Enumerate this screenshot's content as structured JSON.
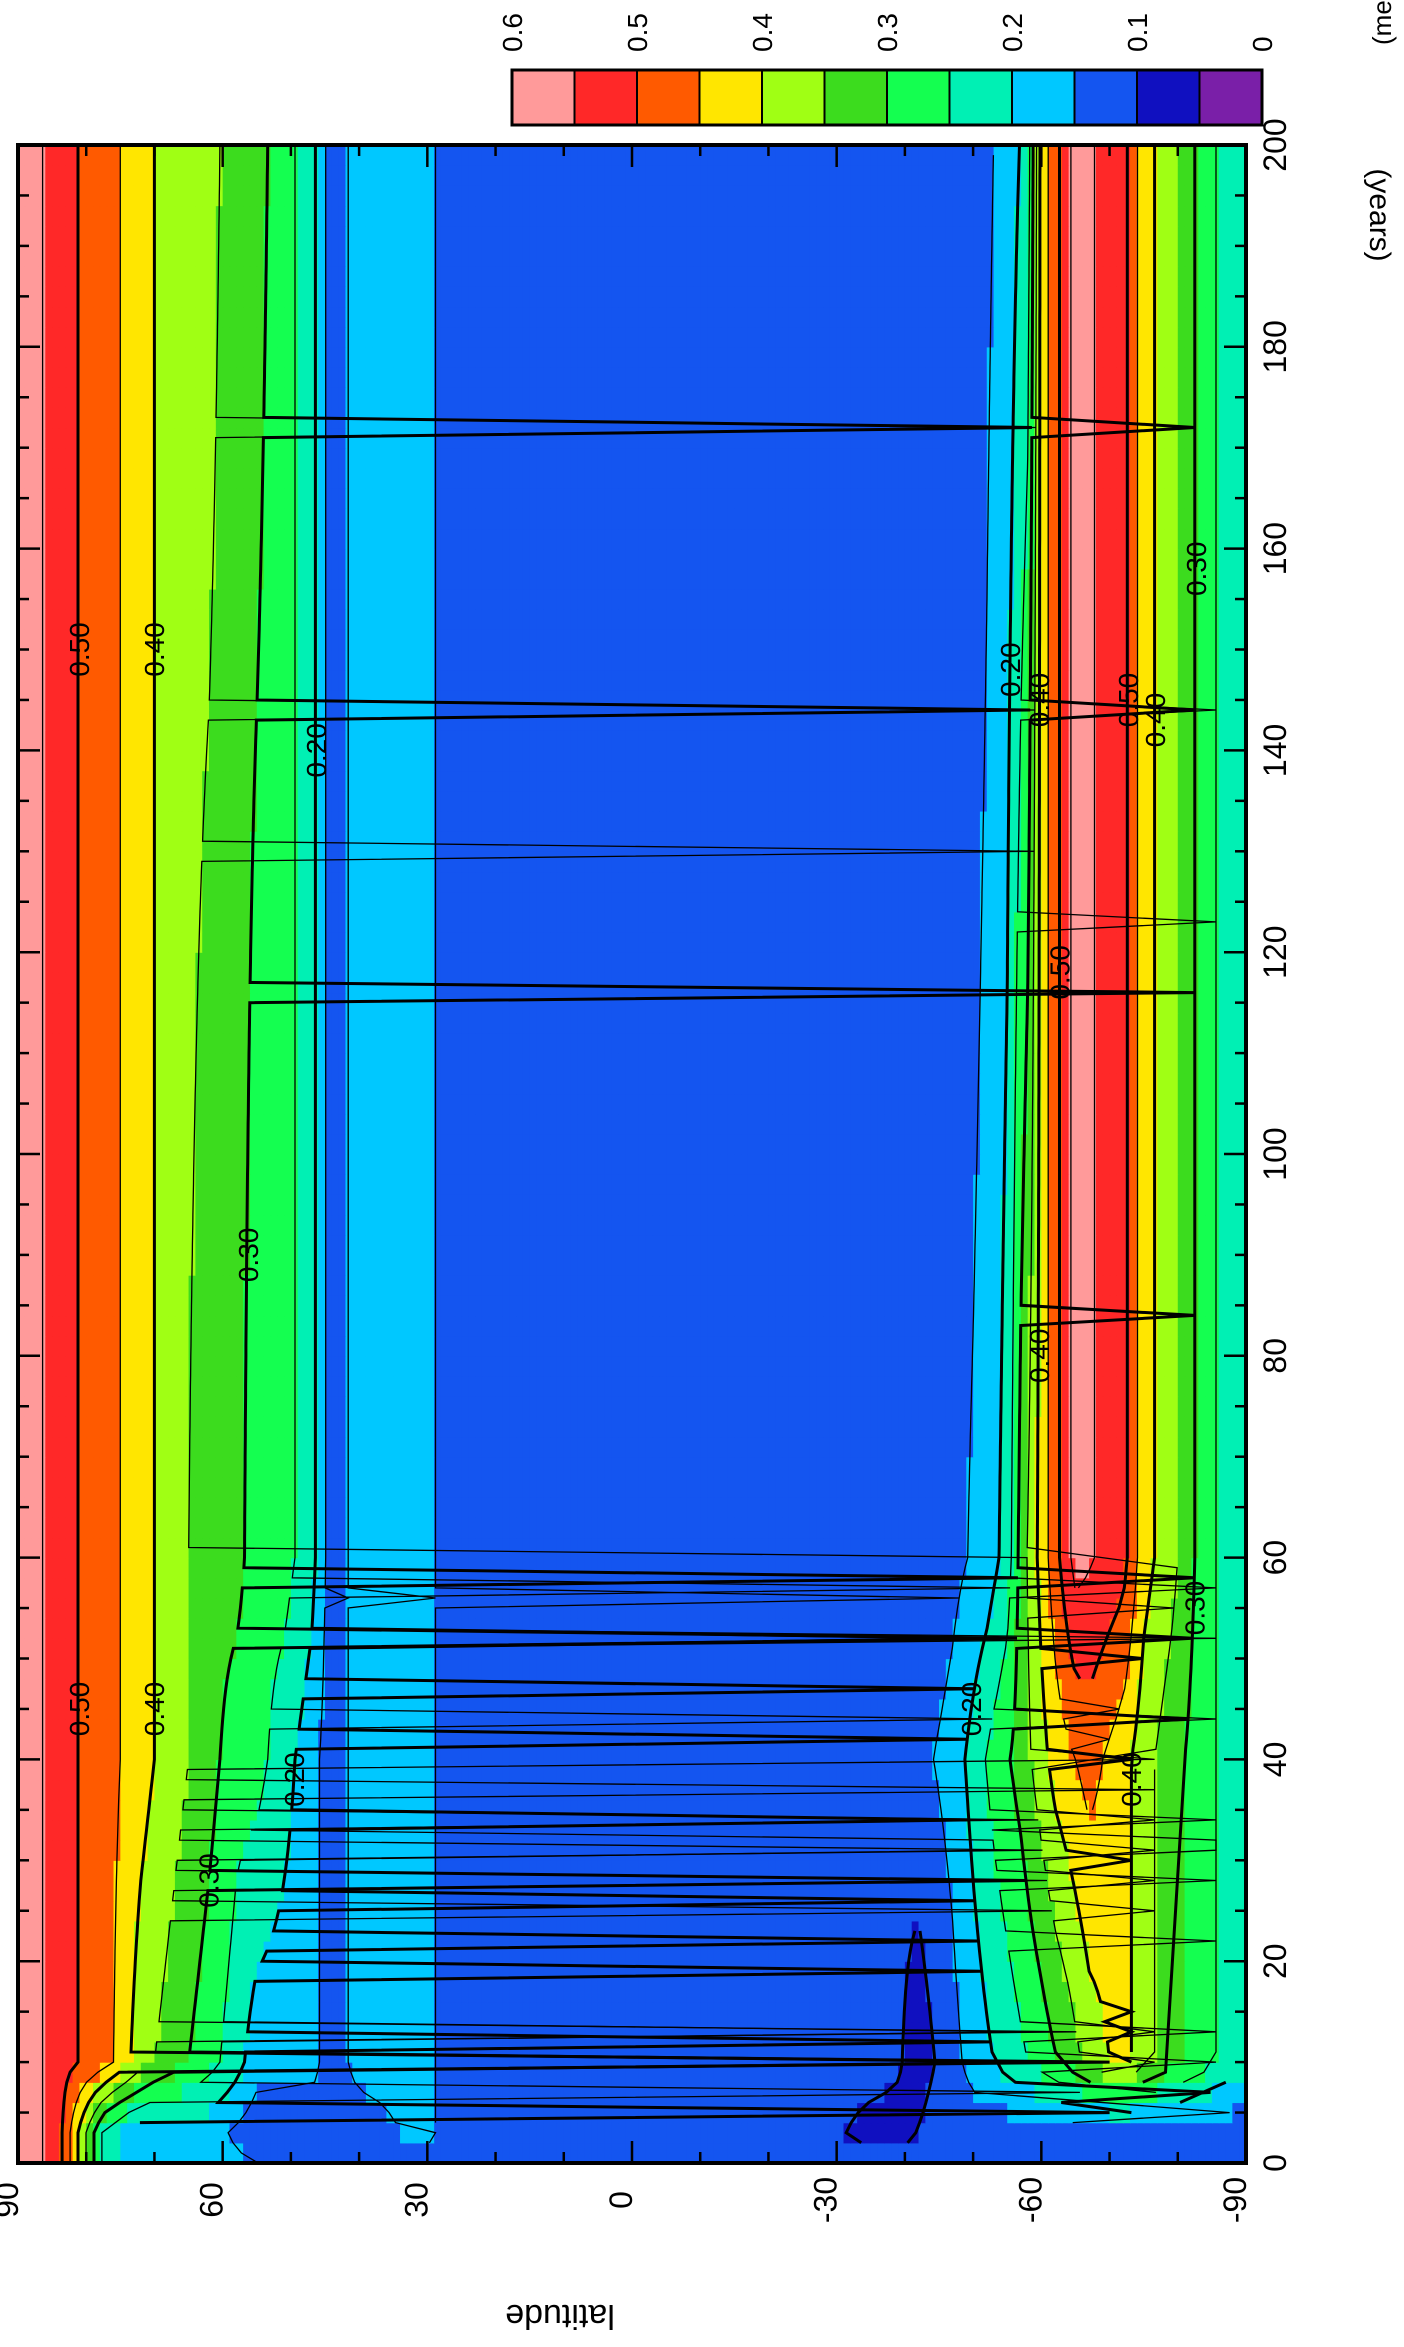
{
  "chart_data": {
    "type": "heatmap",
    "title": "",
    "xlabel": "(years)",
    "ylabel": "latitude",
    "x_range": [
      0,
      200
    ],
    "y_range": [
      -90,
      90
    ],
    "x_ticks": [
      "0",
      "20",
      "40",
      "60",
      "80",
      "100",
      "120",
      "140",
      "160",
      "180",
      "200"
    ],
    "y_ticks": [
      "90",
      "60",
      "30",
      "0",
      "-30",
      "-60",
      "-90"
    ],
    "grid": false,
    "colorbar": {
      "label": "(mean)",
      "placement": "top-right",
      "bins": [
        {
          "from": 0.0,
          "color": "#7a1fa8"
        },
        {
          "from": 0.05,
          "color": "#1010c0"
        },
        {
          "from": 0.1,
          "color": "#1455f0"
        },
        {
          "from": 0.15,
          "color": "#00c8ff"
        },
        {
          "from": 0.2,
          "color": "#00f0b4"
        },
        {
          "from": 0.25,
          "color": "#14ff50"
        },
        {
          "from": 0.3,
          "color": "#3cdc1e"
        },
        {
          "from": 0.35,
          "color": "#a0ff14"
        },
        {
          "from": 0.4,
          "color": "#ffe600"
        },
        {
          "from": 0.45,
          "color": "#ff5a00"
        },
        {
          "from": 0.5,
          "color": "#ff2828"
        },
        {
          "from": 0.55,
          "color": "#ff9a9a"
        }
      ],
      "tick_labels": [
        "0",
        "0.1",
        "0.2",
        "0.3",
        "0.4",
        "0.5",
        "0.6"
      ]
    },
    "contour_labels": [
      "0.50",
      "0.40",
      "0.30",
      "0.20"
    ],
    "profiles": [
      {
        "x": 200,
        "lat": [
          88,
          84,
          77,
          72,
          67,
          62,
          58,
          55,
          51,
          47,
          44,
          40,
          30,
          27,
          0,
          -27,
          -50,
          -55,
          -58,
          -60,
          -65,
          -72,
          -75,
          -79,
          -84,
          -88
        ],
        "val": [
          0.57,
          0.52,
          0.47,
          0.42,
          0.37,
          0.37,
          0.32,
          0.32,
          0.27,
          0.22,
          0.12,
          0.17,
          0.17,
          0.12,
          0.12,
          0.12,
          0.12,
          0.17,
          0.22,
          0.42,
          0.57,
          0.52,
          0.42,
          0.37,
          0.27,
          0.22
        ]
      },
      {
        "x": 60,
        "lat": [
          88,
          84,
          77,
          72,
          67,
          62,
          58,
          55,
          51,
          47,
          44,
          40,
          30,
          27,
          0,
          -27,
          -45,
          -52,
          -55,
          -57,
          -60,
          -65,
          -72,
          -75,
          -79,
          -84,
          -88
        ],
        "val": [
          0.57,
          0.52,
          0.47,
          0.42,
          0.37,
          0.32,
          0.32,
          0.27,
          0.27,
          0.22,
          0.12,
          0.17,
          0.17,
          0.12,
          0.12,
          0.12,
          0.12,
          0.17,
          0.22,
          0.32,
          0.42,
          0.57,
          0.52,
          0.42,
          0.37,
          0.27,
          0.22
        ]
      },
      {
        "x": 40,
        "lat": [
          88,
          84,
          77,
          72,
          67,
          62,
          58,
          55,
          51,
          47,
          44,
          40,
          30,
          27,
          0,
          -27,
          -40,
          -47,
          -50,
          -53,
          -57,
          -62,
          -67,
          -72,
          -75,
          -79,
          -84,
          -88
        ],
        "val": [
          0.57,
          0.52,
          0.47,
          0.42,
          0.37,
          0.32,
          0.27,
          0.27,
          0.22,
          0.17,
          0.12,
          0.17,
          0.17,
          0.12,
          0.12,
          0.12,
          0.12,
          0.17,
          0.22,
          0.27,
          0.32,
          0.42,
          0.47,
          0.42,
          0.37,
          0.32,
          0.27,
          0.22
        ]
      },
      {
        "x": 10,
        "lat": [
          88,
          84,
          77,
          72,
          67,
          62,
          58,
          55,
          51,
          47,
          44,
          40,
          30,
          27,
          0,
          -27,
          -38,
          -42,
          -46,
          -50,
          -55,
          -60,
          -64,
          -67,
          -72,
          -75,
          -79,
          -84,
          -88
        ],
        "val": [
          0.57,
          0.52,
          0.47,
          0.37,
          0.32,
          0.27,
          0.22,
          0.17,
          0.17,
          0.17,
          0.12,
          0.17,
          0.17,
          0.12,
          0.12,
          0.12,
          0.12,
          0.07,
          0.12,
          0.17,
          0.22,
          0.27,
          0.32,
          0.37,
          0.42,
          0.37,
          0.32,
          0.27,
          0.22
        ]
      },
      {
        "x": 3,
        "lat": [
          88,
          84,
          77,
          72,
          62,
          55,
          50,
          45,
          44,
          40,
          30,
          27,
          0,
          -27,
          -38,
          -44,
          -50,
          -60,
          -70,
          -80,
          -88
        ],
        "val": [
          0.57,
          0.52,
          0.22,
          0.17,
          0.17,
          0.12,
          0.12,
          0.12,
          0.12,
          0.12,
          0.17,
          0.12,
          0.12,
          0.12,
          0.07,
          0.12,
          0.12,
          0.12,
          0.12,
          0.12,
          0.12
        ]
      },
      {
        "x": 0,
        "lat": [
          88,
          84,
          77,
          72,
          62,
          44,
          30,
          0,
          -30,
          -60,
          -88
        ],
        "val": [
          0.57,
          0.52,
          0.22,
          0.17,
          0.17,
          0.12,
          0.12,
          0.12,
          0.12,
          0.12,
          0.12
        ]
      }
    ]
  }
}
